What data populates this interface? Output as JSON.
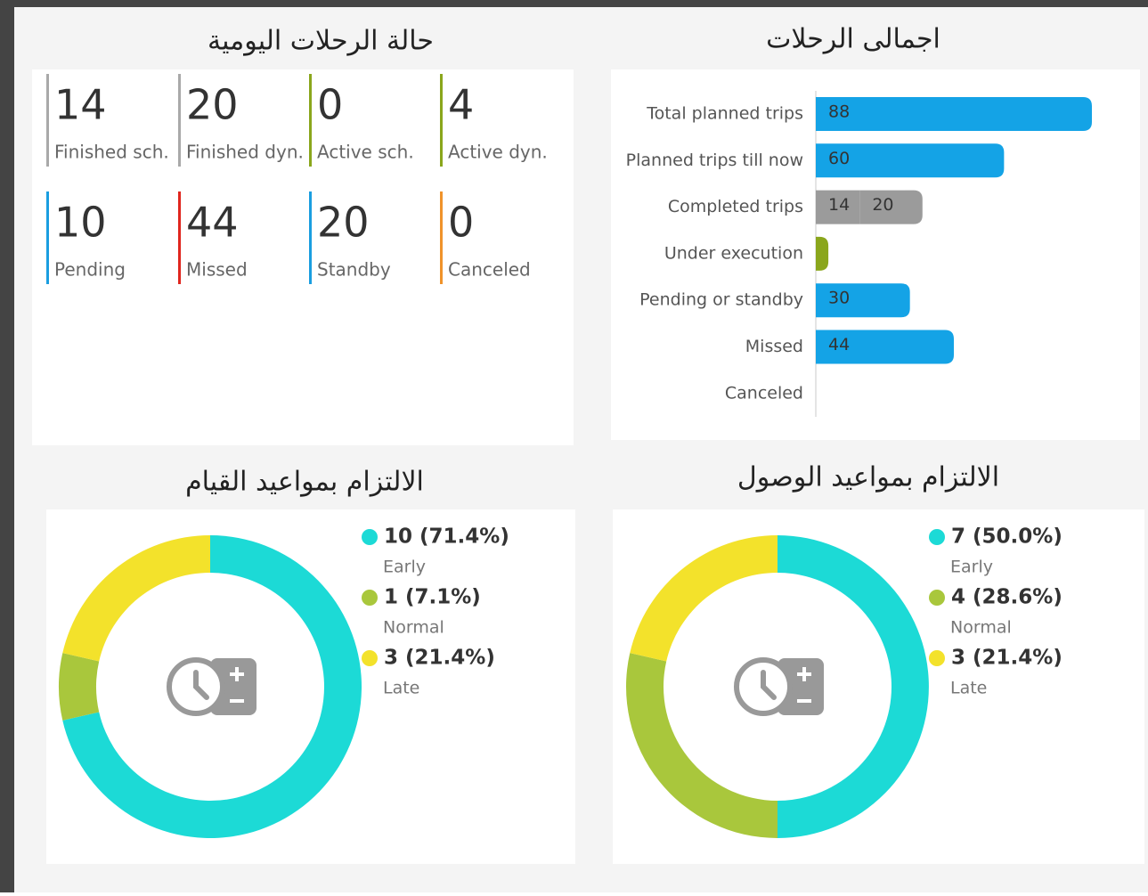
{
  "daily_status": {
    "title": "حالة الرحلات اليومية",
    "tiles": [
      {
        "value": 14,
        "label": "Finished sch.",
        "color": "#a9a9a9"
      },
      {
        "value": 20,
        "label": "Finished dyn.",
        "color": "#a9a9a9"
      },
      {
        "value": 0,
        "label": "Active sch.",
        "color": "#8aa61c"
      },
      {
        "value": 4,
        "label": "Active dyn.",
        "color": "#8aa61c"
      },
      {
        "value": 10,
        "label": "Pending",
        "color": "#1a9ee0"
      },
      {
        "value": 44,
        "label": "Missed",
        "color": "#e0261e"
      },
      {
        "value": 20,
        "label": "Standby",
        "color": "#1a9ee0"
      },
      {
        "value": 0,
        "label": "Canceled",
        "color": "#f0932b"
      }
    ]
  },
  "chart_data": [
    {
      "type": "bar",
      "title": "اجمالى الرحلات",
      "categories": [
        "Total planned trips",
        "Planned trips till now",
        "Completed trips",
        "Under execution",
        "Pending or standby",
        "Missed",
        "Canceled"
      ],
      "series": [
        {
          "colors": [
            "#14a3e6",
            "#14a3e6",
            "#9b9b9b",
            "#8aa61c",
            "#14a3e6",
            "#14a3e6",
            "#14a3e6"
          ],
          "values": [
            88,
            60,
            14,
            4,
            30,
            44,
            0
          ]
        },
        {
          "color": "#9b9b9b",
          "values": [
            null,
            null,
            20,
            null,
            null,
            null,
            null
          ]
        }
      ]
    },
    {
      "type": "pie",
      "title": "الالتزام بمواعيد القيام",
      "categories": [
        "Early",
        "Normal",
        "Late"
      ],
      "values": [
        10,
        1,
        3
      ],
      "value_labels": [
        "10 (71.4%)",
        "1 (7.1%)",
        "3 (21.4%)"
      ],
      "colors": [
        "#1cdad6",
        "#a9c73c",
        "#f3e22b"
      ]
    },
    {
      "type": "pie",
      "title": "الالتزام بمواعيد الوصول",
      "categories": [
        "Early",
        "Normal",
        "Late"
      ],
      "values": [
        7,
        4,
        3
      ],
      "value_labels": [
        "7 (50.0%)",
        "4 (28.6%)",
        "3 (21.4%)"
      ],
      "colors": [
        "#1cdad6",
        "#a9c73c",
        "#f3e22b"
      ]
    }
  ]
}
